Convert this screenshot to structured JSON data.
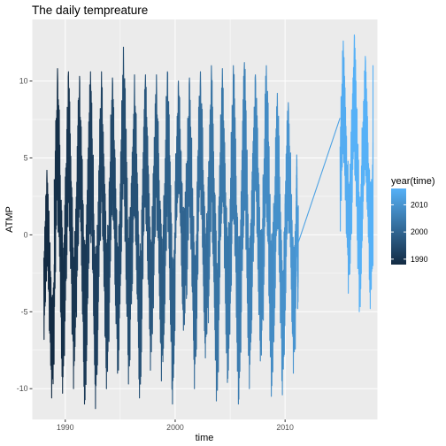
{
  "chart_data": {
    "type": "line",
    "title": "The daily tempreature",
    "xlabel": "time",
    "ylabel": "ATMP",
    "xlim": [
      1987.0,
      2018.4
    ],
    "ylim": [
      -12.0,
      14.0
    ],
    "x_ticks": [
      1990,
      2000,
      2010
    ],
    "x_tick_labels": [
      "1990",
      "2000",
      "2010"
    ],
    "y_ticks": [
      -10,
      -5,
      0,
      5,
      10
    ],
    "y_tick_labels": [
      "-10",
      "-5",
      "0",
      "5",
      "10"
    ],
    "grid": true,
    "legend": {
      "title": "year(time)",
      "position": "right",
      "color_scale": {
        "low": "#132b43",
        "high": "#56b1f7",
        "domain": [
          1988,
          2016
        ]
      },
      "ticks": [
        1990,
        2000,
        2010
      ],
      "tick_labels": [
        "1990",
        "2000",
        "2010"
      ]
    },
    "gap": {
      "from": [
        2011.2,
        -0.5
      ],
      "to": [
        2015.0,
        7.6
      ]
    },
    "yearly_ranges": [
      {
        "year": 1988,
        "min": -10.6,
        "max": 4.2
      },
      {
        "year": 1989,
        "min": -10.3,
        "max": 10.8
      },
      {
        "year": 1990,
        "min": -10.0,
        "max": 10.6
      },
      {
        "year": 1991,
        "min": -11.0,
        "max": 10.3
      },
      {
        "year": 1992,
        "min": -11.3,
        "max": 10.6
      },
      {
        "year": 1993,
        "min": -10.0,
        "max": 10.6
      },
      {
        "year": 1994,
        "min": -9.0,
        "max": 10.2
      },
      {
        "year": 1995,
        "min": -9.7,
        "max": 12.2
      },
      {
        "year": 1996,
        "min": -10.6,
        "max": 10.4
      },
      {
        "year": 1997,
        "min": -8.8,
        "max": 10.4
      },
      {
        "year": 1998,
        "min": -9.5,
        "max": 10.4
      },
      {
        "year": 1999,
        "min": -11.0,
        "max": 10.6
      },
      {
        "year": 2000,
        "min": -6.2,
        "max": 10.0
      },
      {
        "year": 2001,
        "min": -10.0,
        "max": 10.2
      },
      {
        "year": 2002,
        "min": -8.0,
        "max": 10.6
      },
      {
        "year": 2003,
        "min": -10.8,
        "max": 11.0
      },
      {
        "year": 2004,
        "min": -9.6,
        "max": 10.8
      },
      {
        "year": 2005,
        "min": -11.0,
        "max": 11.0
      },
      {
        "year": 2006,
        "min": -10.0,
        "max": 11.2
      },
      {
        "year": 2007,
        "min": -8.2,
        "max": 10.4
      },
      {
        "year": 2008,
        "min": -10.5,
        "max": 11.0
      },
      {
        "year": 2009,
        "min": -10.4,
        "max": 9.2
      },
      {
        "year": 2010,
        "min": -9.0,
        "max": 8.6
      },
      {
        "year": 2011,
        "min": -4.8,
        "max": 5.2
      },
      {
        "year": 2015,
        "min": -3.8,
        "max": 12.6
      },
      {
        "year": 2016,
        "min": -5.0,
        "max": 13.0
      },
      {
        "year": 2017,
        "min": -4.8,
        "max": 11.6
      },
      {
        "year": 2018,
        "min": -2.0,
        "max": 11.0
      }
    ]
  }
}
